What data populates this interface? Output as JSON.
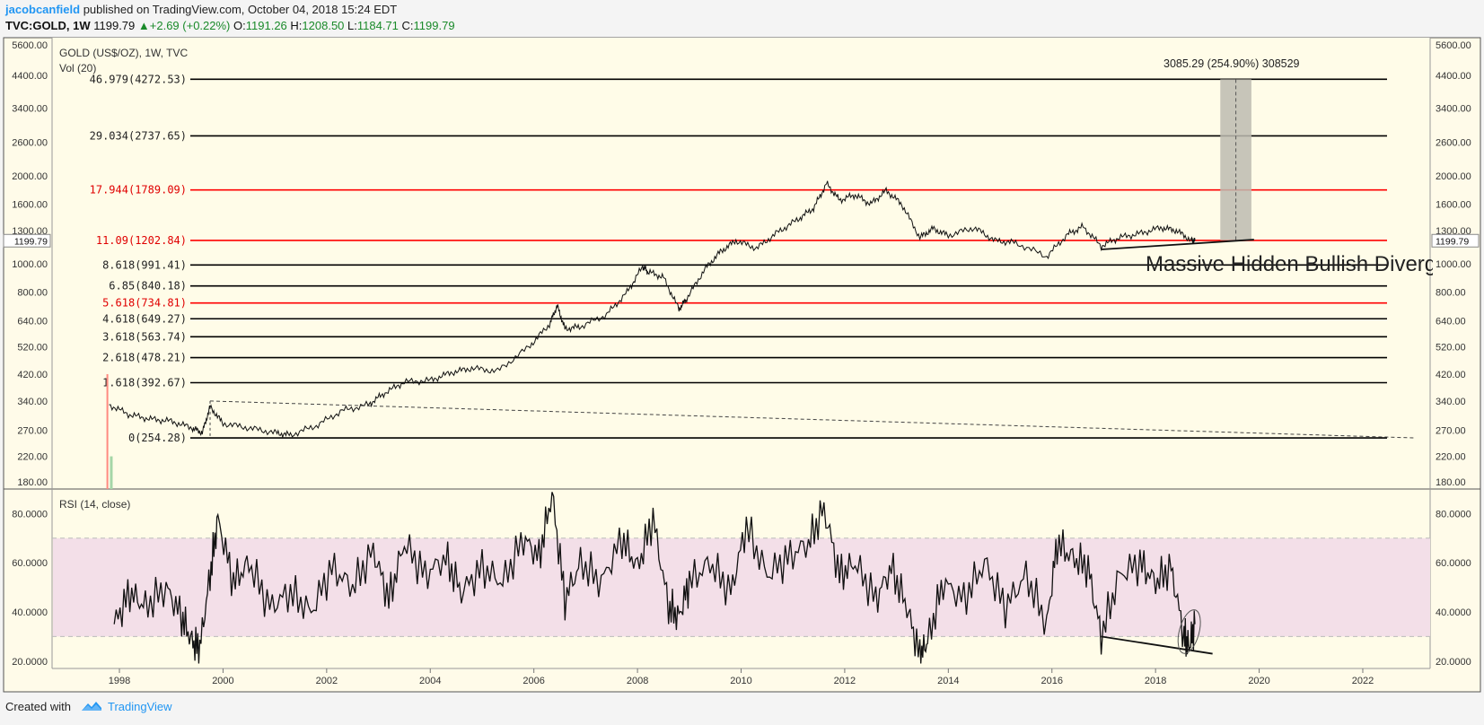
{
  "header": {
    "author": "jacobcanfield",
    "published_text": "published on TradingView.com, October 04, 2018 15:24 EDT",
    "symbol": "TVC:GOLD, 1W",
    "last": "1199.79",
    "change": "+2.69 (+0.22%)",
    "o_label": "O:",
    "o_val": "1191.26",
    "h_label": "H:",
    "h_val": "1208.50",
    "l_label": "L:",
    "l_val": "1184.71",
    "c_label": "C:",
    "c_val": "1199.79"
  },
  "chart_data": [
    {
      "type": "line",
      "title": "GOLD (US$/OZ), 1W, TVC",
      "volume_label": "Vol (20)",
      "y_scale": "log",
      "ylim": [
        180,
        5600
      ],
      "y_ticks": [
        "5600.00",
        "4400.00",
        "3400.00",
        "2600.00",
        "2000.00",
        "1600.00",
        "1300.00",
        "1000.00",
        "800.00",
        "640.00",
        "520.00",
        "420.00",
        "340.00",
        "270.00",
        "220.00",
        "180.00"
      ],
      "y_tick_values": [
        5600,
        4400,
        3400,
        2600,
        2000,
        1600,
        1300,
        1000,
        800,
        640,
        520,
        420,
        340,
        270,
        220,
        180
      ],
      "last_price_tag": "1199.79",
      "x_ticks": [
        "1998",
        "2000",
        "2002",
        "2004",
        "2006",
        "2008",
        "2010",
        "2012",
        "2014",
        "2016",
        "2018",
        "2020",
        "2022"
      ],
      "x_tick_values": [
        1998,
        2000,
        2002,
        2004,
        2006,
        2008,
        2010,
        2012,
        2014,
        2016,
        2018,
        2020,
        2022
      ],
      "xlim": [
        1996.7,
        2023.3
      ],
      "series": [
        {
          "x": [
            1997.8,
            1998.2,
            1998.6,
            1999.0,
            1999.4,
            1999.6,
            1999.75,
            2000.0,
            2000.5,
            2001.0,
            2001.3,
            2001.8,
            2002.3,
            2002.8,
            2003.1,
            2003.5,
            2004.0,
            2004.4,
            2004.8,
            2005.3,
            2005.9,
            2006.3,
            2006.45,
            2006.6,
            2006.9,
            2007.4,
            2007.8,
            2008.1,
            2008.2,
            2008.5,
            2008.8,
            2008.95,
            2009.3,
            2009.6,
            2009.9,
            2010.3,
            2010.7,
            2011.1,
            2011.4,
            2011.65,
            2011.9,
            2012.2,
            2012.5,
            2012.8,
            2013.1,
            2013.45,
            2013.7,
            2014.0,
            2014.5,
            2014.9,
            2015.3,
            2015.9,
            2016.3,
            2016.6,
            2016.95,
            2017.3,
            2017.7,
            2018.1,
            2018.4,
            2018.7,
            2018.76
          ],
          "values": [
            330,
            305,
            295,
            290,
            275,
            265,
            325,
            285,
            275,
            265,
            260,
            280,
            315,
            330,
            360,
            395,
            400,
            425,
            440,
            430,
            520,
            620,
            720,
            600,
            610,
            670,
            800,
            980,
            940,
            900,
            700,
            760,
            960,
            1100,
            1200,
            1130,
            1280,
            1420,
            1550,
            1880,
            1650,
            1720,
            1600,
            1780,
            1600,
            1230,
            1320,
            1250,
            1330,
            1200,
            1180,
            1060,
            1260,
            1340,
            1150,
            1230,
            1270,
            1330,
            1300,
            1200,
            1199.79
          ]
        }
      ],
      "fib_levels": [
        {
          "label": "46.979(4272.53)",
          "value": 4272.53,
          "color": "#000000"
        },
        {
          "label": "29.034(2737.65)",
          "value": 2737.65,
          "color": "#000000"
        },
        {
          "label": "17.944(1789.09)",
          "value": 1789.09,
          "color": "#ff0000"
        },
        {
          "label": "11.09(1202.84)",
          "value": 1202.84,
          "color": "#ff0000"
        },
        {
          "label": "8.618(991.41)",
          "value": 991.41,
          "color": "#000000"
        },
        {
          "label": "6.85(840.18)",
          "value": 840.18,
          "color": "#000000"
        },
        {
          "label": "5.618(734.81)",
          "value": 734.81,
          "color": "#ff0000"
        },
        {
          "label": "4.618(649.27)",
          "value": 649.27,
          "color": "#000000"
        },
        {
          "label": "3.618(563.74)",
          "value": 563.74,
          "color": "#000000"
        },
        {
          "label": "2.618(478.21)",
          "value": 478.21,
          "color": "#000000"
        },
        {
          "label": "1.618(392.67)",
          "value": 392.67,
          "color": "#000000"
        },
        {
          "label": "0(254.28)",
          "value": 254.28,
          "color": "#000000"
        }
      ],
      "measure_label": "3085.29 (254.90%) 308529",
      "annotation": "Massive Hidden Bullish Diverg"
    },
    {
      "type": "line",
      "title": "RSI (14, close)",
      "ylim": [
        17,
        90
      ],
      "y_ticks": [
        "80.0000",
        "60.0000",
        "40.0000",
        "20.0000"
      ],
      "y_tick_values": [
        80,
        60,
        40,
        20
      ],
      "band": [
        30,
        70
      ],
      "series": [
        {
          "x": [
            1997.9,
            1998.2,
            1998.5,
            1998.9,
            1999.2,
            1999.4,
            1999.55,
            1999.75,
            1999.9,
            2000.2,
            2000.5,
            2000.9,
            2001.3,
            2001.7,
            2002.1,
            2002.5,
            2002.9,
            2003.2,
            2003.5,
            2003.9,
            2004.3,
            2004.6,
            2005.0,
            2005.4,
            2005.8,
            2006.1,
            2006.35,
            2006.6,
            2006.9,
            2007.3,
            2007.7,
            2008.0,
            2008.3,
            2008.6,
            2008.8,
            2009.0,
            2009.4,
            2009.8,
            2010.1,
            2010.5,
            2010.9,
            2011.3,
            2011.6,
            2011.9,
            2012.2,
            2012.6,
            2012.9,
            2013.2,
            2013.45,
            2013.6,
            2013.9,
            2014.3,
            2014.7,
            2015.1,
            2015.5,
            2015.9,
            2016.1,
            2016.4,
            2016.7,
            2016.95,
            2017.3,
            2017.7,
            2018.0,
            2018.3,
            2018.55,
            2018.65,
            2018.76
          ],
          "values": [
            35,
            48,
            42,
            50,
            38,
            28,
            25,
            55,
            78,
            52,
            60,
            42,
            48,
            40,
            58,
            50,
            65,
            45,
            68,
            55,
            62,
            48,
            58,
            52,
            70,
            62,
            88,
            45,
            60,
            52,
            70,
            58,
            78,
            42,
            38,
            52,
            60,
            48,
            75,
            55,
            62,
            68,
            82,
            55,
            60,
            45,
            58,
            42,
            22,
            28,
            52,
            45,
            60,
            42,
            55,
            35,
            68,
            62,
            58,
            30,
            55,
            60,
            52,
            58,
            30,
            26,
            35
          ]
        }
      ],
      "divergence_line": {
        "x": [
          2016.95,
          2019.1
        ],
        "values": [
          30,
          23
        ]
      }
    }
  ],
  "footer": {
    "created_with": "Created with",
    "brand": "TradingView"
  }
}
